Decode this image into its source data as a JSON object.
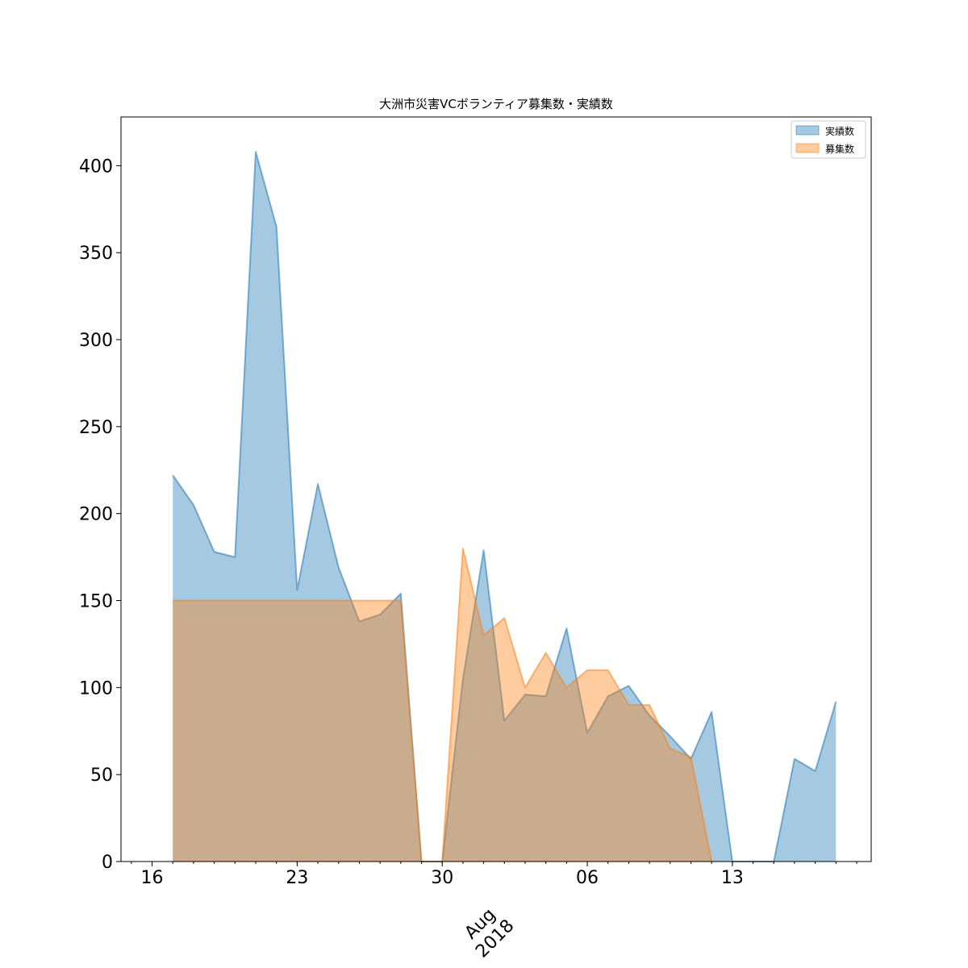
{
  "chart_data": {
    "type": "area",
    "title": "大洲市災害VCボランティア募集数・実績数",
    "xlabel": "",
    "ylabel": "",
    "x_start_date": "2018-07-17",
    "x": [
      "07-17",
      "07-18",
      "07-19",
      "07-20",
      "07-21",
      "07-22",
      "07-23",
      "07-24",
      "07-25",
      "07-26",
      "07-27",
      "07-28",
      "07-29",
      "07-30",
      "07-31",
      "08-01",
      "08-02",
      "08-03",
      "08-04",
      "08-05",
      "08-06",
      "08-07",
      "08-08",
      "08-09",
      "08-10",
      "08-11",
      "08-12",
      "08-13",
      "08-14",
      "08-15",
      "08-16",
      "08-17",
      "08-18"
    ],
    "series": [
      {
        "name": "実績数",
        "color": "#1f77b4",
        "values": [
          222,
          205,
          178,
          175,
          408,
          365,
          156,
          217,
          169,
          138,
          142,
          154,
          0,
          0,
          105,
          179,
          81,
          96,
          95,
          134,
          74,
          95,
          101,
          84,
          72,
          59,
          86,
          0,
          0,
          0,
          59,
          52,
          92
        ]
      },
      {
        "name": "募集数",
        "color": "#ff7f0e",
        "values": [
          150,
          150,
          150,
          150,
          150,
          150,
          150,
          150,
          150,
          150,
          150,
          150,
          0,
          0,
          180,
          130,
          140,
          100,
          120,
          100,
          110,
          110,
          90,
          90,
          65,
          60,
          0,
          null,
          null,
          null,
          null,
          null,
          null
        ]
      }
    ],
    "ylim": [
      0,
      428
    ],
    "y_ticks": [
      0,
      50,
      100,
      150,
      200,
      250,
      300,
      350,
      400
    ],
    "x_major_ticks": [
      {
        "label": "16",
        "day": -1
      },
      {
        "label": "23",
        "day": 6
      },
      {
        "label": "30",
        "day": 13
      },
      {
        "label": "06",
        "day": 20
      },
      {
        "label": "13",
        "day": 27
      }
    ],
    "x_period_label": [
      "Aug",
      "2018"
    ],
    "legend_position": "upper right",
    "grid": false
  }
}
